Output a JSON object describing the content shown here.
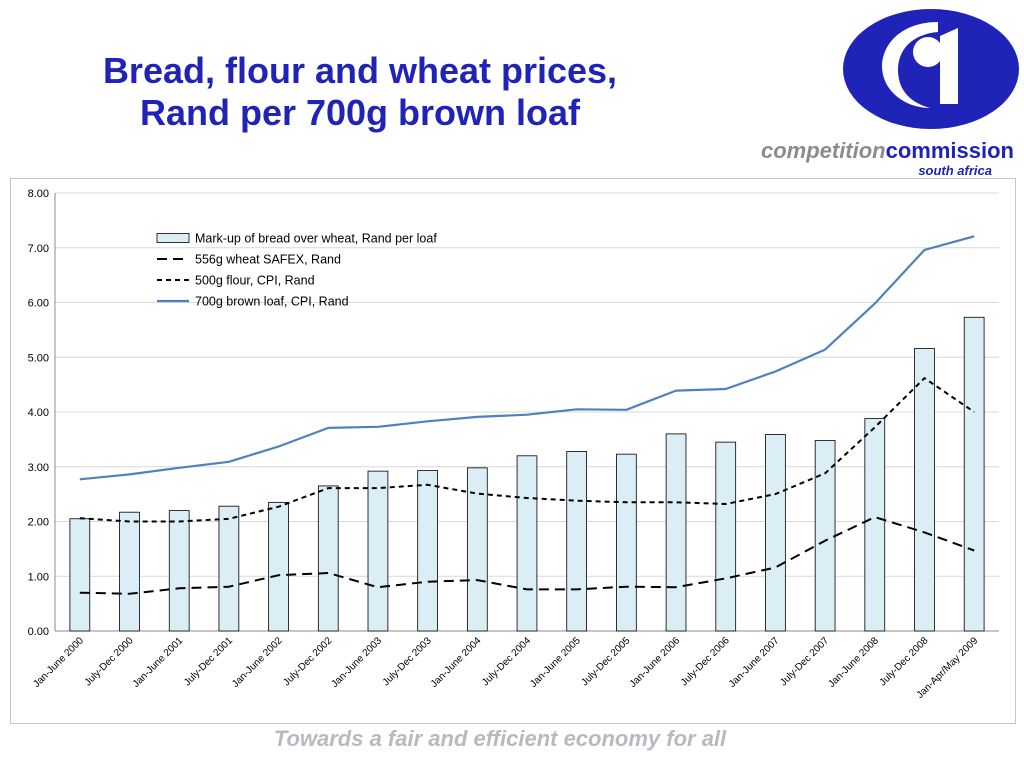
{
  "slide": {
    "title_line1": "Bread, flour and wheat prices,",
    "title_line2": "Rand per 700g brown loaf",
    "tagline": "Towards a fair and efficient economy for all",
    "logo": {
      "word1": "competition",
      "word2": "commission",
      "sub": "south africa",
      "icon": "competition-commission-logo",
      "brand_color": "#1f23b8",
      "grey_color": "#8a8c91"
    }
  },
  "chart_data": {
    "type": "bar",
    "title": "",
    "xlabel": "",
    "ylabel": "",
    "ylim": [
      0,
      8
    ],
    "yticks": [
      "0.00",
      "1.00",
      "2.00",
      "3.00",
      "4.00",
      "5.00",
      "6.00",
      "7.00",
      "8.00"
    ],
    "grid": true,
    "legend_position": "top-left-inside",
    "categories": [
      "Jan-June 2000",
      "July-Dec 2000",
      "Jan-June 2001",
      "July-Dec 2001",
      "Jan-June 2002",
      "July-Dec 2002",
      "Jan-June 2003",
      "July-Dec 2003",
      "Jan-June 2004",
      "July-Dec 2004",
      "Jan-June 2005",
      "July-Dec 2005",
      "Jan-June 2006",
      "July-Dec 2006",
      "Jan-June 2007",
      "July-Dec 2007",
      "Jan-June 2008",
      "July-Dec 2008",
      "Jan-Apr/May 2009"
    ],
    "series": [
      {
        "name": "Mark-up of bread over wheat, Rand per loaf",
        "kind": "bar",
        "color": "#dbeef6",
        "values": [
          2.05,
          2.17,
          2.2,
          2.28,
          2.35,
          2.65,
          2.92,
          2.93,
          2.98,
          3.2,
          3.28,
          3.23,
          3.6,
          3.45,
          3.59,
          3.48,
          3.88,
          5.16,
          5.73
        ]
      },
      {
        "name": "556g wheat SAFEX, Rand",
        "kind": "line-long-dash",
        "color": "#000000",
        "values": [
          0.7,
          0.68,
          0.78,
          0.81,
          1.02,
          1.06,
          0.8,
          0.9,
          0.93,
          0.76,
          0.76,
          0.81,
          0.8,
          0.96,
          1.16,
          1.65,
          2.08,
          1.8,
          1.47
        ]
      },
      {
        "name": "500g flour, CPI, Rand",
        "kind": "line-short-dash",
        "color": "#000000",
        "values": [
          2.06,
          2.0,
          2.0,
          2.05,
          2.27,
          2.61,
          2.61,
          2.67,
          2.51,
          2.43,
          2.38,
          2.35,
          2.35,
          2.32,
          2.5,
          2.88,
          3.72,
          4.62,
          4.0
        ]
      },
      {
        "name": "700g brown loaf, CPI, Rand",
        "kind": "line-solid",
        "color": "#4f81bd",
        "values": [
          2.77,
          2.86,
          2.98,
          3.09,
          3.37,
          3.71,
          3.73,
          3.83,
          3.91,
          3.95,
          4.05,
          4.04,
          4.39,
          4.42,
          4.74,
          5.14,
          5.98,
          6.96,
          7.21
        ]
      }
    ]
  }
}
